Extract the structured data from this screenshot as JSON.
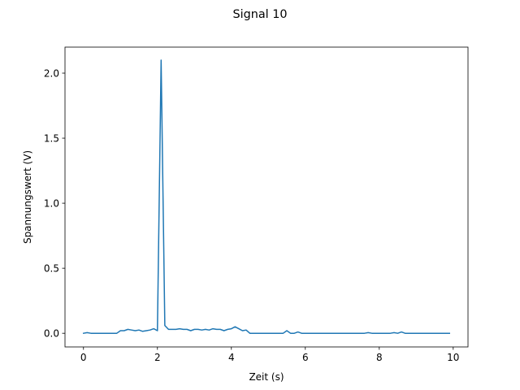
{
  "chart_data": {
    "type": "line",
    "title": "Signal 10",
    "xlabel": "Zeit (s)",
    "ylabel": "Spannungswert (V)",
    "xlim": [
      -0.5,
      10.4
    ],
    "ylim": [
      -0.105,
      2.2
    ],
    "xticks": [
      0,
      2,
      4,
      6,
      8,
      10
    ],
    "xtick_labels": [
      "0",
      "2",
      "4",
      "6",
      "8",
      "10"
    ],
    "yticks": [
      0.0,
      0.5,
      1.0,
      1.5,
      2.0
    ],
    "ytick_labels": [
      "0.0",
      "0.5",
      "1.0",
      "1.5",
      "2.0"
    ],
    "grid": false,
    "series": [
      {
        "color": "#1f77b4",
        "x": [
          0.0,
          0.1,
          0.2,
          0.3,
          0.4,
          0.5,
          0.6,
          0.7,
          0.8,
          0.9,
          1.0,
          1.1,
          1.2,
          1.3,
          1.4,
          1.5,
          1.6,
          1.7,
          1.8,
          1.9,
          2.0,
          2.1,
          2.2,
          2.3,
          2.4,
          2.5,
          2.6,
          2.7,
          2.8,
          2.9,
          3.0,
          3.1,
          3.2,
          3.3,
          3.4,
          3.5,
          3.6,
          3.7,
          3.8,
          3.9,
          4.0,
          4.1,
          4.2,
          4.3,
          4.4,
          4.5,
          4.6,
          4.7,
          4.8,
          4.9,
          5.0,
          5.1,
          5.2,
          5.3,
          5.4,
          5.5,
          5.6,
          5.7,
          5.8,
          5.9,
          6.0,
          6.1,
          6.2,
          6.3,
          6.4,
          6.5,
          6.6,
          6.7,
          6.8,
          6.9,
          7.0,
          7.1,
          7.2,
          7.3,
          7.4,
          7.5,
          7.6,
          7.7,
          7.8,
          7.9,
          8.0,
          8.1,
          8.2,
          8.3,
          8.4,
          8.5,
          8.6,
          8.7,
          8.8,
          8.9,
          9.0,
          9.1,
          9.2,
          9.3,
          9.4,
          9.5,
          9.6,
          9.7,
          9.8,
          9.9
        ],
        "y": [
          0.0,
          0.005,
          0.0,
          0.0,
          0.0,
          0.0,
          0.0,
          0.0,
          0.0,
          0.0,
          0.02,
          0.02,
          0.03,
          0.025,
          0.02,
          0.025,
          0.015,
          0.02,
          0.025,
          0.035,
          0.02,
          2.1,
          0.06,
          0.03,
          0.03,
          0.03,
          0.035,
          0.03,
          0.03,
          0.02,
          0.03,
          0.03,
          0.025,
          0.03,
          0.025,
          0.035,
          0.03,
          0.03,
          0.02,
          0.03,
          0.035,
          0.05,
          0.035,
          0.02,
          0.025,
          0.0,
          0.0,
          0.0,
          0.0,
          0.0,
          0.0,
          0.0,
          0.0,
          0.0,
          0.0,
          0.02,
          0.0,
          0.0,
          0.01,
          0.0,
          0.0,
          0.0,
          0.0,
          0.0,
          0.0,
          0.0,
          0.0,
          0.0,
          0.0,
          0.0,
          0.0,
          0.0,
          0.0,
          0.0,
          0.0,
          0.0,
          0.0,
          0.005,
          0.0,
          0.0,
          0.0,
          0.0,
          0.0,
          0.0,
          0.005,
          0.0,
          0.01,
          0.0,
          0.0,
          0.0,
          0.0,
          0.0,
          0.0,
          0.0,
          0.0,
          0.0,
          0.0,
          0.0,
          0.0,
          0.0
        ]
      }
    ]
  }
}
